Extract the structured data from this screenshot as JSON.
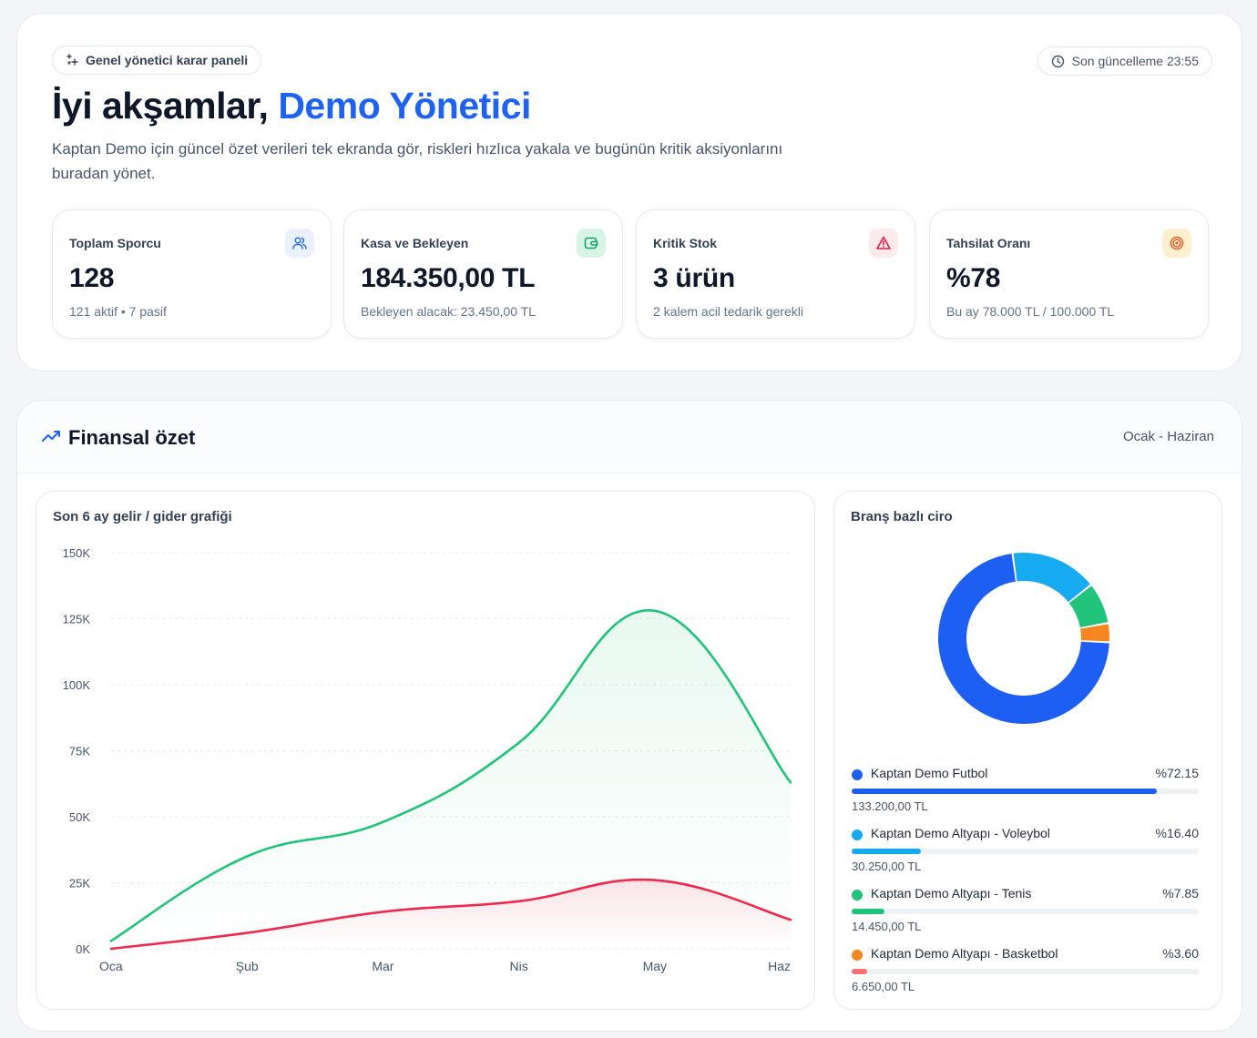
{
  "hero": {
    "badge": "Genel yönetici karar paneli",
    "updated": "Son güncelleme 23:55",
    "greeting": "İyi akşamlar,",
    "name": "Demo Yönetici",
    "description": "Kaptan Demo için güncel özet verileri tek ekranda gör, riskleri hızlıca yakala ve bugünün kritik aksiyonlarını buradan yönet."
  },
  "kpis": [
    {
      "label": "Toplam Sporcu",
      "value": "128",
      "sub": "121 aktif • 7 pasif",
      "icon": "users-icon",
      "icon_bg": "#eaf1fd",
      "icon_color": "#2f6fe8"
    },
    {
      "label": "Kasa ve Bekleyen",
      "value": "184.350,00 TL",
      "sub": "Bekleyen alacak: 23.450,00 TL",
      "icon": "wallet-icon",
      "icon_bg": "#d6f5e6",
      "icon_color": "#16a36a"
    },
    {
      "label": "Kritik Stok",
      "value": "3 ürün",
      "sub": "2 kalem acil tedarik gerekli",
      "icon": "warning-icon",
      "icon_bg": "#fdeaea",
      "icon_color": "#e11d48"
    },
    {
      "label": "Tahsilat Oranı",
      "value": "%78",
      "sub": "Bu ay 78.000 TL / 100.000 TL",
      "icon": "target-icon",
      "icon_bg": "#fdf0cf",
      "icon_color": "#e0612b"
    }
  ],
  "finance": {
    "title": "Finansal özet",
    "range": "Ocak - Haziran",
    "line_title": "Son 6 ay gelir / gider grafiği",
    "pie_title": "Branş bazlı ciro"
  },
  "chart_data": [
    {
      "type": "area",
      "categories": [
        "Oca",
        "Şub",
        "Mar",
        "Nis",
        "May",
        "Haz"
      ],
      "series": [
        {
          "values": [
            3000,
            35000,
            48000,
            78000,
            128000,
            63000
          ],
          "color": "#1fc47a"
        },
        {
          "values": [
            0,
            6000,
            14000,
            18000,
            26000,
            11000
          ],
          "color": "#f0284a"
        }
      ],
      "y_ticks": [
        "0K",
        "25K",
        "50K",
        "75K",
        "100K",
        "125K",
        "150K"
      ],
      "ylim": [
        0,
        150000
      ],
      "grid": true
    },
    {
      "type": "pie",
      "labels": [
        "Kaptan Demo Futbol",
        "Kaptan Demo Altyapı - Voleybol",
        "Kaptan Demo Altyapı - Tenis",
        "Kaptan Demo Altyapı - Basketbol"
      ],
      "values": [
        72.15,
        16.4,
        7.85,
        3.6
      ],
      "pct_labels": [
        "%72.15",
        "%16.40",
        "%7.85",
        "%3.60"
      ],
      "amounts": [
        "133.200,00 TL",
        "30.250,00 TL",
        "14.450,00 TL",
        "6.650,00 TL"
      ],
      "colors": [
        "#1d5ff2",
        "#16aaf0",
        "#1fc47a",
        "#f6861f"
      ],
      "bar_colors": [
        "#1d5ff2",
        "#16aaf0",
        "#1fc47a",
        "#f87171"
      ]
    }
  ]
}
